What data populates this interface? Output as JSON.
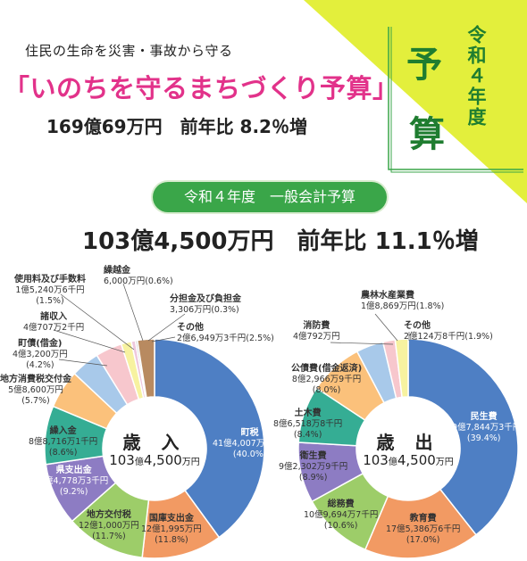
{
  "header": {
    "subtitle": "住民の生命を災害・事故から守る",
    "title": "「いのちを守るまちづくり予算」",
    "amount": "169億69万円　前年比 8.2％増"
  },
  "badge": {
    "year": "令和４年度",
    "char1": "予",
    "char2": "算"
  },
  "section": {
    "pill": "令和４年度　一般会計予算",
    "total": "103億4,500万円　前年比 11.1％増"
  },
  "colors": {
    "accent": "#e2328a",
    "green": "#3aa649",
    "corner": "#e3ef3c"
  },
  "chart_data": [
    {
      "type": "pie",
      "title": "歳入",
      "center_name": "歳 入",
      "center_amount_a": "103",
      "center_amount_unit1": "億",
      "center_amount_b": "4,500",
      "center_amount_unit2": "万円",
      "slices": [
        {
          "name": "町税",
          "amount": "41億4,007万5千円",
          "pct": "(40.0%)",
          "value": 40.0,
          "color": "#4e7fc4"
        },
        {
          "name": "国庫支出金",
          "amount": "12億1,995万円",
          "pct": "(11.8%)",
          "value": 11.8,
          "color": "#f29a63"
        },
        {
          "name": "地方交付税",
          "amount": "12億1,000万円",
          "pct": "(11.7%)",
          "value": 11.7,
          "color": "#9dcd69"
        },
        {
          "name": "県支出金",
          "amount": "9億4,778万3千円",
          "pct": "(9.2%)",
          "value": 9.2,
          "color": "#8d7cc3"
        },
        {
          "name": "繰入金",
          "amount": "8億8,716万1千円",
          "pct": "(8.6%)",
          "value": 8.6,
          "color": "#35ad94"
        },
        {
          "name": "地方消費税交付金",
          "amount": "5億8,600万円",
          "pct": "(5.7%)",
          "value": 5.7,
          "color": "#fbc17b"
        },
        {
          "name": "町債(借金)",
          "amount": "4億3,200万円",
          "pct": "(4.2%)",
          "value": 4.2,
          "color": "#a8c9ea"
        },
        {
          "name": "諸収入",
          "amount": "4億707万2千円",
          "pct": "(3.9%)",
          "value": 3.9,
          "color": "#f7c7cd"
        },
        {
          "name": "使用料及び手数料",
          "amount": "1億5,240万6千円",
          "pct": "(1.5%)",
          "value": 1.5,
          "color": "#f7f2a0"
        },
        {
          "name": "繰越金",
          "amount": "6,000万円",
          "pct": "(0.6%)",
          "value": 0.6,
          "color": "#eec8dd"
        },
        {
          "name": "分担金及び負担金",
          "amount": "3,306万円",
          "pct": "(0.3%)",
          "value": 0.3,
          "color": "#c9c9c9"
        },
        {
          "name": "その他",
          "amount": "2億6,949万3千円",
          "pct": "(2.5%)",
          "value": 2.5,
          "color": "#b88a60"
        }
      ]
    },
    {
      "type": "pie",
      "title": "歳出",
      "center_name": "歳 出",
      "center_amount_a": "103",
      "center_amount_unit1": "億",
      "center_amount_b": "4,500",
      "center_amount_unit2": "万円",
      "slices": [
        {
          "name": "民生費",
          "amount": "40億7,844万3千円",
          "pct": "(39.4%)",
          "value": 39.4,
          "color": "#4e7fc4"
        },
        {
          "name": "教育費",
          "amount": "17億5,386万6千円",
          "pct": "(17.0%)",
          "value": 17.0,
          "color": "#f29a63"
        },
        {
          "name": "総務費",
          "amount": "10億9,694万7千円",
          "pct": "(10.6%)",
          "value": 10.6,
          "color": "#9dcd69"
        },
        {
          "name": "衛生費",
          "amount": "9億2,302万9千円",
          "pct": "(8.9%)",
          "value": 8.9,
          "color": "#8d7cc3"
        },
        {
          "name": "土木費",
          "amount": "8億6,518万8千円",
          "pct": "(8.4%)",
          "value": 8.4,
          "color": "#35ad94"
        },
        {
          "name": "公債費(借金返済)",
          "amount": "8億2,966万9千円",
          "pct": "(8.0%)",
          "value": 8.0,
          "color": "#fbc17b"
        },
        {
          "name": "消防費",
          "amount": "4億792万円",
          "pct": "(4.0%)",
          "value": 4.0,
          "color": "#a8c9ea"
        },
        {
          "name": "農林水産業費",
          "amount": "1億8,869万円",
          "pct": "(1.8%)",
          "value": 1.8,
          "color": "#f7c7cd"
        },
        {
          "name": "その他",
          "amount": "2億124万8千円",
          "pct": "(1.9%)",
          "value": 1.9,
          "color": "#f7f2a0"
        }
      ]
    }
  ]
}
